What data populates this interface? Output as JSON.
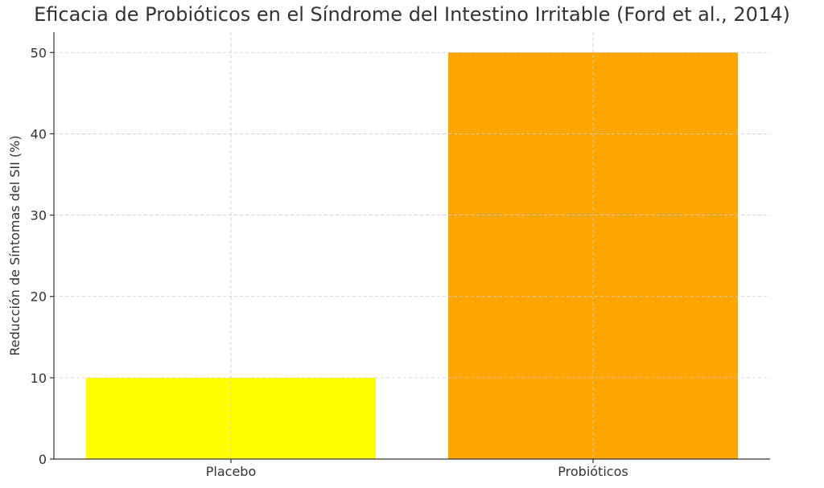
{
  "chart_data": {
    "type": "bar",
    "title": "Eficacia de Probióticos en el Síndrome del Intestino Irritable (Ford et al., 2014)",
    "xlabel": "",
    "ylabel": "Reducción de Síntomas del SII (%)",
    "categories": [
      "Placebo",
      "Probióticos"
    ],
    "values": [
      10,
      50
    ],
    "colors": [
      "#ffff00",
      "#ffa500"
    ],
    "ylim": [
      0,
      52.5
    ],
    "yticks": [
      0,
      10,
      20,
      30,
      40,
      50
    ],
    "grid": true
  }
}
